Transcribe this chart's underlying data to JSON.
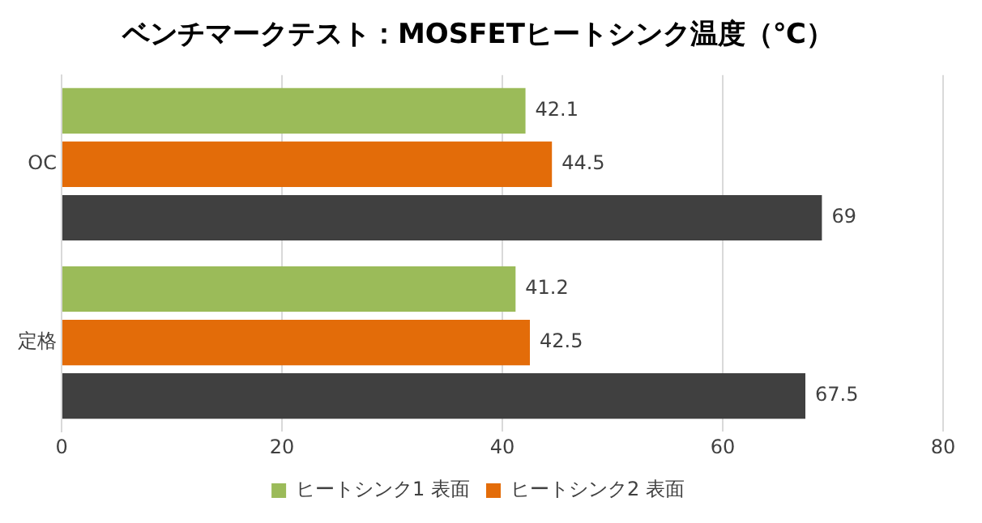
{
  "chart_data": {
    "type": "bar",
    "orientation": "horizontal",
    "title": "ベンチマークテスト：MOSFETヒートシンク温度（℃）",
    "categories": [
      "OC",
      "定格"
    ],
    "series": [
      {
        "name": "ヒートシンク1 表面",
        "color": "#9bbb59",
        "values": [
          42.1,
          41.2
        ]
      },
      {
        "name": "ヒートシンク2 表面",
        "color": "#e36c09",
        "values": [
          44.5,
          42.5
        ]
      },
      {
        "color": "#404040",
        "values": [
          69,
          67.5
        ]
      }
    ],
    "xlim": [
      0,
      80
    ],
    "xticks": [
      0,
      20,
      40,
      60,
      80
    ],
    "grid": "x",
    "data_labels": true,
    "legend": "bottom"
  }
}
